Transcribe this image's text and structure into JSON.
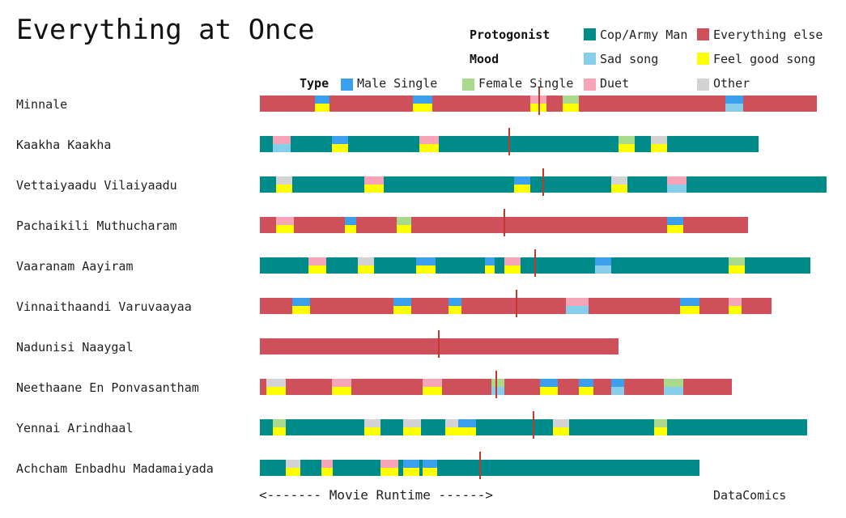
{
  "chart_data": {
    "type": "timeline",
    "title": "Everything at Once",
    "x_axis_label": "<------- Movie Runtime ------>",
    "credit": "DataComics",
    "colors": {
      "cop": "#008B8B",
      "else": "#CD505A",
      "male": "#3AA0EE",
      "female": "#A9DA8C",
      "duet": "#F7A4B8",
      "other": "#D3D3D3",
      "sad": "#87CEEB",
      "feelgood": "#FFFF00",
      "midline": "#C0392B"
    },
    "legend": {
      "protagonist": {
        "label": "Protogonist",
        "items": [
          {
            "key": "cop",
            "label": "Cop/Army Man"
          },
          {
            "key": "else",
            "label": "Everything else"
          }
        ]
      },
      "mood": {
        "label": "Mood",
        "items": [
          {
            "key": "sad",
            "label": "Sad song"
          },
          {
            "key": "feelgood",
            "label": "Feel good song"
          }
        ]
      },
      "type": {
        "label": "Type",
        "items": [
          {
            "key": "male",
            "label": "Male Single"
          },
          {
            "key": "female",
            "label": "Female Single"
          },
          {
            "key": "duet",
            "label": "Duet"
          },
          {
            "key": "other",
            "label": "Other"
          }
        ]
      }
    },
    "movies": [
      {
        "name": "Minnale",
        "protagonist": "else",
        "length": 688,
        "midpoint": 345,
        "songs": [
          [
            68,
            18,
            "male",
            "feelgood"
          ],
          [
            189,
            24,
            "male",
            "feelgood"
          ],
          [
            334,
            20,
            "duet",
            "feelgood"
          ],
          [
            374,
            20,
            "female",
            "feelgood"
          ],
          [
            575,
            22,
            "male",
            "sad"
          ]
        ]
      },
      {
        "name": "Kaakha Kaakha",
        "protagonist": "cop",
        "length": 616,
        "midpoint": 308,
        "songs": [
          [
            16,
            22,
            "duet",
            "sad"
          ],
          [
            89,
            20,
            "male",
            "feelgood"
          ],
          [
            197,
            24,
            "duet",
            "feelgood"
          ],
          [
            443,
            20,
            "female",
            "feelgood"
          ],
          [
            483,
            20,
            "other",
            "feelgood"
          ]
        ]
      },
      {
        "name": "Vettaiyaadu Vilaiyaadu",
        "protagonist": "cop",
        "length": 700,
        "midpoint": 350,
        "songs": [
          [
            20,
            20,
            "other",
            "feelgood"
          ],
          [
            129,
            24,
            "duet",
            "feelgood"
          ],
          [
            314,
            20,
            "male",
            "feelgood"
          ],
          [
            434,
            20,
            "other",
            "feelgood"
          ],
          [
            503,
            24,
            "duet",
            "sad"
          ]
        ]
      },
      {
        "name": "Pachaikili Muthucharam",
        "protagonist": "else",
        "length": 603,
        "midpoint": 302,
        "songs": [
          [
            20,
            22,
            "duet",
            "feelgood"
          ],
          [
            105,
            14,
            "male",
            "feelgood"
          ],
          [
            169,
            18,
            "female",
            "feelgood"
          ],
          [
            503,
            20,
            "male",
            "feelgood"
          ]
        ]
      },
      {
        "name": "Vaaranam Aayiram",
        "protagonist": "cop",
        "length": 680,
        "midpoint": 340,
        "songs": [
          [
            60,
            22,
            "duet",
            "feelgood"
          ],
          [
            121,
            20,
            "other",
            "feelgood"
          ],
          [
            193,
            24,
            "male",
            "feelgood"
          ],
          [
            278,
            12,
            "male",
            "feelgood"
          ],
          [
            302,
            20,
            "duet",
            "feelgood"
          ],
          [
            414,
            20,
            "male",
            "sad"
          ],
          [
            579,
            20,
            "female",
            "feelgood"
          ]
        ]
      },
      {
        "name": "Vinnaithaandi Varuvaayaa",
        "protagonist": "else",
        "length": 632,
        "midpoint": 317,
        "songs": [
          [
            40,
            22,
            "male",
            "feelgood"
          ],
          [
            165,
            22,
            "male",
            "feelgood"
          ],
          [
            233,
            16,
            "male",
            "feelgood"
          ],
          [
            378,
            28,
            "duet",
            "sad"
          ],
          [
            519,
            24,
            "male",
            "feelgood"
          ],
          [
            579,
            16,
            "duet",
            "feelgood"
          ]
        ]
      },
      {
        "name": "Nadunisi Naaygal",
        "protagonist": "else",
        "length": 443,
        "midpoint": 221,
        "songs": []
      },
      {
        "name": "Neethaane En Ponvasantham",
        "protagonist": "else",
        "length": 583,
        "midpoint": 292,
        "songs": [
          [
            8,
            24,
            "other",
            "feelgood"
          ],
          [
            89,
            24,
            "duet",
            "feelgood"
          ],
          [
            201,
            24,
            "duet",
            "feelgood"
          ],
          [
            286,
            16,
            "female",
            "sad"
          ],
          [
            346,
            22,
            "male",
            "feelgood"
          ],
          [
            394,
            18,
            "male",
            "feelgood"
          ],
          [
            434,
            16,
            "male",
            "sad"
          ],
          [
            499,
            24,
            "female",
            "sad"
          ]
        ]
      },
      {
        "name": "Yennai Arindhaal",
        "protagonist": "cop",
        "length": 676,
        "midpoint": 338,
        "songs": [
          [
            16,
            16,
            "female",
            "feelgood"
          ],
          [
            129,
            20,
            "other",
            "feelgood"
          ],
          [
            177,
            22,
            "other",
            "feelgood"
          ],
          [
            229,
            16,
            "other",
            "feelgood"
          ],
          [
            245,
            22,
            "male",
            "feelgood"
          ],
          [
            362,
            20,
            "other",
            "feelgood"
          ],
          [
            487,
            16,
            "female",
            "feelgood"
          ]
        ]
      },
      {
        "name": "Achcham Enbadhu Madamaiyada",
        "protagonist": "cop",
        "length": 543,
        "midpoint": 272,
        "songs": [
          [
            32,
            18,
            "other",
            "feelgood"
          ],
          [
            76,
            14,
            "duet",
            "feelgood"
          ],
          [
            149,
            22,
            "duet",
            "feelgood"
          ],
          [
            177,
            20,
            "male",
            "feelgood"
          ],
          [
            201,
            18,
            "male",
            "feelgood"
          ]
        ]
      }
    ]
  }
}
